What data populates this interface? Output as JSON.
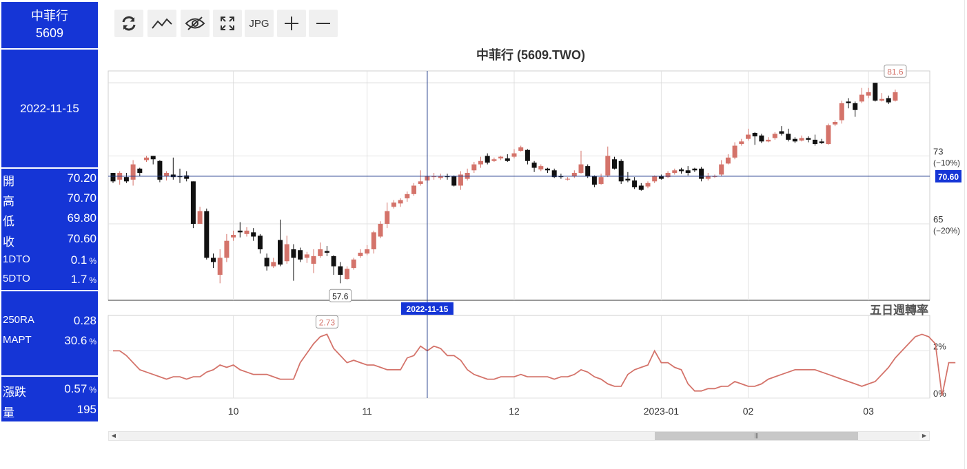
{
  "sidebar": {
    "stock_name": "中菲行",
    "stock_code": "5609",
    "date": "2022-11-15",
    "ohlc": [
      {
        "label": "開",
        "value": "70.20"
      },
      {
        "label": "高",
        "value": "70.70"
      },
      {
        "label": "低",
        "value": "69.80"
      },
      {
        "label": "收",
        "value": "70.60"
      },
      {
        "label": "1DTO",
        "value": "0.1",
        "unit": "%"
      },
      {
        "label": "5DTO",
        "value": "1.7",
        "unit": "%"
      }
    ],
    "ratios": [
      {
        "label": "250RA",
        "value": "0.28"
      },
      {
        "label": "MAPT",
        "value": "30.6",
        "unit": "%"
      }
    ],
    "change": [
      {
        "label": "漲跌",
        "value": "0.57",
        "unit": "%"
      },
      {
        "label": "量",
        "value": "195"
      }
    ]
  },
  "toolbar": {
    "buttons": [
      {
        "name": "refresh-button",
        "icon": "refresh-icon"
      },
      {
        "name": "line-chart-button",
        "icon": "line-chart-icon"
      },
      {
        "name": "hide-button",
        "icon": "eye-off-icon"
      },
      {
        "name": "fullscreen-button",
        "icon": "expand-icon"
      },
      {
        "name": "jpg-button",
        "label": "JPG"
      },
      {
        "name": "zoom-in-button",
        "icon": "plus-icon"
      },
      {
        "name": "zoom-out-button",
        "icon": "minus-icon"
      }
    ]
  },
  "chart_data": [
    {
      "type": "candlestick",
      "title": "中菲行 (5609.TWO)",
      "ylim": [
        56,
        83
      ],
      "x_ticks": [
        "10",
        "11",
        "12",
        "2023-01",
        "02",
        "03"
      ],
      "y_ticks": [
        {
          "value": 73,
          "label": "73",
          "sublabel": "(−10%)"
        },
        {
          "value": 65,
          "label": "65",
          "sublabel": "(−20%)"
        }
      ],
      "ref_line": 81.6,
      "crosshair": {
        "date": "2022-11-15",
        "price": 70.6,
        "price_label": "70.60"
      },
      "annotations": [
        {
          "label": "81.6",
          "value": 81.6,
          "kind": "high"
        },
        {
          "label": "57.6",
          "value": 57.6,
          "kind": "low"
        }
      ],
      "colors": {
        "up": "#d4736a",
        "down": "#111111",
        "crosshair": "#1f3a8a",
        "tag_bg": "#1535d6"
      },
      "candles": [
        [
          71,
          70,
          70.8,
          69.8
        ],
        [
          70.2,
          71,
          71.2,
          69.6
        ],
        [
          70.5,
          70,
          71,
          69.8
        ],
        [
          70.2,
          72,
          72.5,
          69.5
        ],
        [
          71.5,
          71,
          71.6,
          70.6
        ],
        [
          72.5,
          72.8,
          73,
          72.3
        ],
        [
          73,
          72.6,
          73,
          72
        ],
        [
          72.4,
          70.2,
          72.5,
          69.9
        ],
        [
          70.6,
          71,
          71.2,
          70.1
        ],
        [
          70.8,
          70.5,
          72.8,
          70.2
        ],
        [
          70.6,
          70.5,
          71.5,
          69.8
        ],
        [
          70.7,
          70.3,
          71.2,
          70
        ],
        [
          70,
          65,
          70,
          64.5
        ],
        [
          65,
          66.5,
          67,
          65
        ],
        [
          66.5,
          61,
          66.8,
          60.8
        ],
        [
          61,
          60.5,
          61.5,
          59.8
        ],
        [
          59,
          61,
          62,
          58
        ],
        [
          61,
          63,
          63.8,
          60.5
        ],
        [
          63.4,
          63.7,
          64.2,
          63
        ],
        [
          64.2,
          64,
          65.2,
          63.4
        ],
        [
          63.8,
          64.2,
          64.6,
          63.5
        ],
        [
          64,
          63.5,
          64.5,
          63
        ],
        [
          63.6,
          62,
          63.8,
          61.5
        ],
        [
          61,
          60,
          61.5,
          59.5
        ],
        [
          60,
          60.5,
          61,
          59.8
        ],
        [
          63.1,
          60.2,
          65.5,
          60
        ],
        [
          60.6,
          62.6,
          63.6,
          60.3
        ],
        [
          62,
          61,
          62.6,
          58.3
        ],
        [
          61.9,
          60.8,
          62.2,
          60.5
        ],
        [
          61,
          61.4,
          61.7,
          60.4
        ],
        [
          60.3,
          61.2,
          62,
          59.2
        ],
        [
          61.2,
          62,
          62.8,
          61
        ],
        [
          61.8,
          61.6,
          62.4,
          61.2
        ],
        [
          61.2,
          60,
          61.3,
          59
        ],
        [
          60,
          59,
          60.5,
          58
        ],
        [
          58.5,
          59.7,
          60,
          58.4
        ],
        [
          59.8,
          60.8,
          61,
          59.6
        ],
        [
          61.2,
          61.6,
          62,
          61
        ],
        [
          61.5,
          62,
          62.5,
          61.3
        ],
        [
          62,
          64,
          64.2,
          61.5
        ],
        [
          63.5,
          65,
          65.3,
          63.3
        ],
        [
          65,
          66.5,
          67.5,
          64.5
        ],
        [
          67,
          67.5,
          67.8,
          66.8
        ],
        [
          67.4,
          67.8,
          68,
          67
        ],
        [
          68,
          68.5,
          68.8,
          67.6
        ],
        [
          68.5,
          69.5,
          69.8,
          68.3
        ],
        [
          69.7,
          70,
          71.3,
          69.5
        ],
        [
          70.1,
          70.6,
          70.7,
          69.8
        ],
        [
          70.5,
          70.6,
          71,
          70.2
        ],
        [
          70.4,
          70.6,
          70.9,
          70.2
        ],
        [
          70.6,
          70.5,
          70.9,
          70.2
        ],
        [
          70.6,
          69.5,
          70.7,
          69.4
        ],
        [
          69.5,
          70.8,
          71.2,
          69
        ],
        [
          70.3,
          71,
          71.5,
          70.1
        ],
        [
          71.3,
          72,
          72.3,
          71
        ],
        [
          72,
          72.4,
          72.9,
          71.6
        ],
        [
          73,
          72.2,
          73.3,
          72
        ],
        [
          72.4,
          72.6,
          72.8,
          72.3
        ],
        [
          72.7,
          72.9,
          73,
          72.5
        ],
        [
          72.7,
          72.4,
          73.2,
          72.3
        ],
        [
          72.9,
          73.3,
          73.8,
          72.7
        ],
        [
          73.6,
          74,
          74.2,
          73.5
        ],
        [
          73.7,
          72.4,
          73.8,
          72
        ],
        [
          72.2,
          71.6,
          72.4,
          71.1
        ],
        [
          71.4,
          71.8,
          72,
          71.2
        ],
        [
          71.5,
          71.3,
          71.6,
          71
        ],
        [
          71.3,
          70.5,
          71.5,
          70.4
        ],
        [
          70.6,
          70.5,
          70.9,
          70.3
        ],
        [
          70.3,
          70.3,
          70.5,
          70.1
        ],
        [
          70.6,
          71,
          71.3,
          70.4
        ],
        [
          71,
          72,
          73.6,
          70.9
        ],
        [
          71.8,
          70.6,
          72,
          70.4
        ],
        [
          70.6,
          69.6,
          70.7,
          69.3
        ],
        [
          69.7,
          70.5,
          70.9,
          69.6
        ],
        [
          70.7,
          73,
          74.1,
          70.5
        ],
        [
          72.6,
          71.5,
          72.9,
          71.4
        ],
        [
          72.4,
          70,
          72.6,
          69.7
        ],
        [
          70.3,
          70.1,
          71.1,
          69.9
        ],
        [
          70.1,
          69.3,
          70.5,
          69.1
        ],
        [
          69.5,
          69,
          69.8,
          68.9
        ],
        [
          69.4,
          69.8,
          70,
          69.2
        ],
        [
          70,
          70.6,
          70.7,
          69.8
        ],
        [
          70.6,
          70.3,
          70.8,
          70.2
        ],
        [
          70.5,
          71,
          71.2,
          70.4
        ],
        [
          71,
          71.3,
          71.5,
          70.8
        ],
        [
          71.4,
          71.2,
          71.6,
          70.9
        ],
        [
          71.3,
          71,
          71.8,
          70.7
        ],
        [
          71.5,
          71.3,
          71.6,
          71.1
        ],
        [
          71.5,
          70.3,
          71.7,
          70
        ],
        [
          70.3,
          70.6,
          71,
          70.1
        ],
        [
          70.6,
          70.6,
          70.8,
          70.4
        ],
        [
          70.8,
          72,
          72.5,
          70.6
        ],
        [
          72.1,
          72.8,
          73.2,
          72
        ],
        [
          72.8,
          74.2,
          74.6,
          72.6
        ],
        [
          74.4,
          74.7,
          75,
          74.2
        ],
        [
          75,
          75.5,
          76.2,
          74.8
        ],
        [
          75.7,
          75.3,
          75.8,
          74.3
        ],
        [
          75.4,
          74.7,
          75.6,
          74.5
        ],
        [
          74.7,
          74.9,
          75.2,
          74.6
        ],
        [
          75.1,
          75.6,
          75.8,
          74.9
        ],
        [
          75.9,
          75.6,
          76.5,
          75.4
        ],
        [
          75.6,
          74.9,
          76.2,
          74.7
        ],
        [
          75,
          74.7,
          75.2,
          74.5
        ],
        [
          74.8,
          75.1,
          75.4,
          74.7
        ],
        [
          75.1,
          74.9,
          75.3,
          74.6
        ],
        [
          74.9,
          74.4,
          75.5,
          74.2
        ],
        [
          74.7,
          74.5,
          75,
          74.4
        ],
        [
          74.4,
          76.6,
          76.8,
          74.3
        ],
        [
          76.7,
          77,
          77.2,
          76.5
        ],
        [
          77.2,
          79.2,
          79.5,
          76.8
        ],
        [
          79.4,
          79.2,
          79.8,
          78.6
        ],
        [
          79.2,
          78.4,
          79.4,
          77.6
        ],
        [
          79.4,
          80.2,
          81,
          79.2
        ],
        [
          80.1,
          80.5,
          81,
          79.8
        ],
        [
          81.6,
          79.5,
          81.6,
          79.4
        ],
        [
          79.5,
          79.7,
          80.4,
          79.4
        ],
        [
          79.8,
          79.3,
          80.1,
          79.1
        ],
        [
          79.5,
          80.5,
          80.8,
          79.4
        ]
      ]
    },
    {
      "type": "line",
      "title": "五日週轉率",
      "ylim": [
        0,
        3.5
      ],
      "y_ticks": [
        {
          "value": 2,
          "label": "2%"
        },
        {
          "value": 0,
          "label": "0%"
        }
      ],
      "annotations": [
        {
          "label": "2.73",
          "value": 2.73,
          "kind": "peak"
        }
      ],
      "color": "#d4736a",
      "values": [
        2.0,
        2.0,
        1.8,
        1.5,
        1.2,
        1.1,
        1.0,
        0.9,
        0.8,
        0.9,
        0.9,
        0.8,
        0.9,
        0.9,
        1.1,
        1.2,
        1.4,
        1.3,
        1.4,
        1.2,
        1.1,
        1.0,
        1.0,
        1.0,
        0.9,
        0.8,
        0.8,
        0.8,
        1.5,
        1.9,
        2.3,
        2.6,
        2.7,
        2.1,
        1.8,
        1.5,
        1.6,
        1.5,
        1.4,
        1.4,
        1.3,
        1.2,
        1.2,
        1.2,
        1.7,
        1.8,
        2.2,
        2.0,
        2.2,
        2.1,
        1.8,
        1.8,
        1.6,
        1.2,
        1.0,
        0.9,
        0.8,
        0.8,
        0.9,
        0.9,
        0.9,
        1.0,
        0.9,
        0.9,
        0.9,
        0.9,
        0.8,
        0.9,
        0.9,
        1.0,
        1.2,
        1.1,
        0.9,
        0.8,
        0.6,
        0.5,
        0.5,
        1.0,
        1.2,
        1.3,
        1.4,
        2.0,
        1.5,
        1.5,
        1.3,
        1.2,
        0.6,
        0.3,
        0.3,
        0.4,
        0.4,
        0.5,
        0.5,
        0.7,
        0.6,
        0.5,
        0.5,
        0.6,
        0.8,
        0.9,
        1.0,
        1.1,
        1.2,
        1.2,
        1.2,
        1.2,
        1.1,
        1.0,
        0.9,
        0.8,
        0.7,
        0.6,
        0.5,
        0.6,
        0.7,
        1.0,
        1.3,
        1.7,
        2.0,
        2.3,
        2.6,
        2.7,
        2.6,
        2.3,
        0.1,
        1.5,
        1.5
      ]
    }
  ]
}
